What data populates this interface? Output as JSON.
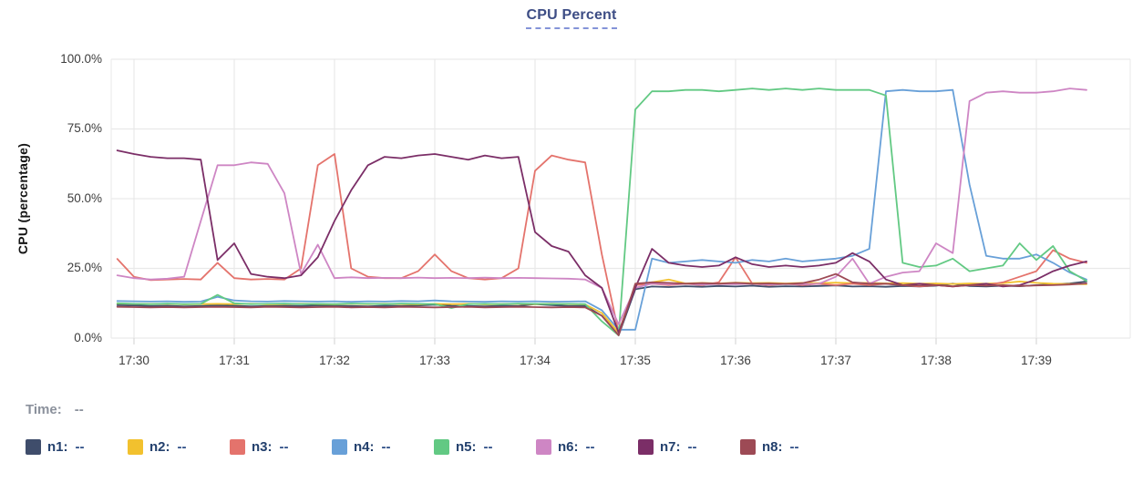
{
  "title": {
    "text": "CPU Percent",
    "color": "#3d4d85"
  },
  "y_axis": {
    "label": "CPU (percentage)",
    "ticks": [
      "100.0%",
      "75.0%",
      "50.0%",
      "25.0%",
      "0.0%"
    ]
  },
  "x_axis": {
    "ticks": [
      "17:30",
      "17:31",
      "17:32",
      "17:33",
      "17:34",
      "17:35",
      "17:36",
      "17:37",
      "17:38",
      "17:39"
    ]
  },
  "time_readout": {
    "label": "Time:",
    "value": "--"
  },
  "legend": [
    {
      "name": "n1",
      "label": "n1:",
      "value": "--",
      "color": "#3f4d6b"
    },
    {
      "name": "n2",
      "label": "n2:",
      "value": "--",
      "color": "#f2c12e"
    },
    {
      "name": "n3",
      "label": "n3:",
      "value": "--",
      "color": "#e4736c"
    },
    {
      "name": "n4",
      "label": "n4:",
      "value": "--",
      "color": "#68a0d8"
    },
    {
      "name": "n5",
      "label": "n5:",
      "value": "--",
      "color": "#62c983"
    },
    {
      "name": "n6",
      "label": "n6:",
      "value": "--",
      "color": "#ce86c4"
    },
    {
      "name": "n7",
      "label": "n7:",
      "value": "--",
      "color": "#7b2e67"
    },
    {
      "name": "n8",
      "label": "n8:",
      "value": "--",
      "color": "#9d4a55"
    }
  ],
  "chart_data": {
    "type": "line",
    "title": "CPU Percent",
    "xlabel": "",
    "ylabel": "CPU (percentage)",
    "ylim": [
      0,
      100
    ],
    "grid": true,
    "legend_position": "bottom",
    "y_tick_values": [
      0,
      25,
      50,
      75,
      100
    ],
    "x_tick_labels": [
      "17:30",
      "17:31",
      "17:32",
      "17:33",
      "17:34",
      "17:35",
      "17:36",
      "17:37",
      "17:38",
      "17:39"
    ],
    "times": [
      "17:29:50",
      "17:30:00",
      "17:30:10",
      "17:30:20",
      "17:30:30",
      "17:30:40",
      "17:30:50",
      "17:31:00",
      "17:31:10",
      "17:31:20",
      "17:31:30",
      "17:31:40",
      "17:31:50",
      "17:32:00",
      "17:32:10",
      "17:32:20",
      "17:32:30",
      "17:32:40",
      "17:32:50",
      "17:33:00",
      "17:33:10",
      "17:33:20",
      "17:33:30",
      "17:33:40",
      "17:33:50",
      "17:34:00",
      "17:34:10",
      "17:34:20",
      "17:34:30",
      "17:34:40",
      "17:34:50",
      "17:35:00",
      "17:35:10",
      "17:35:20",
      "17:35:30",
      "17:35:40",
      "17:35:50",
      "17:36:00",
      "17:36:10",
      "17:36:20",
      "17:36:30",
      "17:36:40",
      "17:36:50",
      "17:37:00",
      "17:37:10",
      "17:37:20",
      "17:37:30",
      "17:37:40",
      "17:37:50",
      "17:38:00",
      "17:38:10",
      "17:38:20",
      "17:38:30",
      "17:38:40",
      "17:38:50",
      "17:39:00",
      "17:39:10",
      "17:39:20",
      "17:39:30"
    ],
    "series": [
      {
        "name": "n1",
        "color": "#3f4d6b",
        "values": [
          11.8,
          11.7,
          11.5,
          11.6,
          11.4,
          11.5,
          11.7,
          11.6,
          11.4,
          11.5,
          11.6,
          11.5,
          11.7,
          11.6,
          11.5,
          11.4,
          11.6,
          11.5,
          11.7,
          12.0,
          11.6,
          11.5,
          11.4,
          11.6,
          11.5,
          12.2,
          11.8,
          11.5,
          11.6,
          8.0,
          1.0,
          17.5,
          18.5,
          18.3,
          18.6,
          18.4,
          18.7,
          18.5,
          18.8,
          18.4,
          18.6,
          18.5,
          18.7,
          18.9,
          18.5,
          18.6,
          18.4,
          18.7,
          18.5,
          18.8,
          19.5,
          18.7,
          18.5,
          18.8,
          18.6,
          19.0,
          19.3,
          19.6,
          20.3
        ]
      },
      {
        "name": "n2",
        "color": "#f2c12e",
        "values": [
          12.4,
          12.3,
          12.2,
          12.3,
          12.1,
          12.2,
          12.3,
          12.2,
          12.3,
          12.1,
          12.2,
          12.3,
          12.2,
          12.1,
          12.3,
          12.2,
          12.3,
          12.2,
          12.1,
          12.3,
          12.2,
          12.3,
          12.1,
          12.2,
          12.3,
          12.2,
          12.3,
          12.2,
          12.1,
          9.0,
          2.0,
          19.0,
          20.0,
          21.0,
          19.6,
          19.8,
          19.6,
          19.9,
          19.7,
          19.8,
          19.6,
          19.8,
          19.7,
          19.9,
          19.7,
          19.8,
          19.6,
          19.7,
          19.5,
          19.6,
          19.4,
          19.6,
          19.5,
          19.7,
          20.3,
          19.8,
          19.5,
          19.4,
          19.3
        ]
      },
      {
        "name": "n3",
        "color": "#e4736c",
        "values": [
          28.4,
          22.0,
          20.8,
          21.0,
          21.2,
          21.0,
          27.0,
          21.5,
          21.0,
          21.2,
          21.0,
          25.0,
          62.0,
          66.0,
          25.0,
          22.0,
          21.5,
          21.5,
          24.0,
          30.0,
          24.0,
          21.5,
          21.0,
          21.5,
          25.0,
          60.0,
          65.5,
          64.0,
          63.0,
          30.0,
          2.0,
          19.0,
          19.5,
          19.0,
          19.5,
          19.0,
          20.0,
          29.0,
          19.5,
          19.0,
          19.5,
          19.0,
          19.5,
          19.0,
          19.5,
          19.0,
          19.5,
          19.0,
          18.5,
          19.0,
          18.5,
          19.0,
          19.0,
          20.0,
          22.0,
          24.0,
          31.5,
          28.5,
          27.0
        ]
      },
      {
        "name": "n4",
        "color": "#68a0d8",
        "values": [
          13.3,
          13.2,
          13.1,
          13.2,
          13.0,
          13.1,
          14.8,
          13.5,
          13.2,
          13.1,
          13.3,
          13.2,
          13.1,
          13.2,
          13.0,
          13.2,
          13.1,
          13.3,
          13.2,
          13.5,
          13.2,
          13.1,
          13.0,
          13.2,
          13.1,
          13.2,
          13.0,
          13.1,
          13.2,
          10.0,
          3.0,
          3.0,
          28.5,
          27.0,
          27.5,
          28.0,
          27.5,
          27.0,
          28.0,
          27.5,
          28.5,
          27.5,
          28.0,
          28.5,
          29.5,
          32.0,
          88.5,
          89.0,
          88.5,
          88.5,
          89.0,
          55.0,
          29.5,
          28.5,
          28.5,
          30.0,
          27.0,
          23.5,
          21.0
        ]
      },
      {
        "name": "n5",
        "color": "#62c983",
        "values": [
          12.5,
          12.3,
          12.2,
          12.4,
          12.2,
          12.3,
          15.5,
          12.5,
          12.2,
          12.3,
          12.4,
          12.2,
          12.3,
          12.2,
          12.4,
          12.3,
          12.2,
          12.4,
          12.3,
          12.2,
          10.8,
          12.2,
          12.3,
          12.2,
          12.4,
          12.3,
          12.2,
          12.3,
          12.2,
          6.0,
          1.0,
          82.0,
          88.5,
          88.5,
          89.0,
          89.0,
          88.5,
          89.0,
          89.5,
          89.0,
          89.5,
          89.0,
          89.5,
          89.0,
          89.0,
          89.0,
          87.0,
          27.0,
          25.5,
          26.0,
          28.5,
          24.0,
          25.0,
          26.0,
          34.0,
          28.0,
          33.0,
          24.0,
          20.5
        ]
      },
      {
        "name": "n6",
        "color": "#ce86c4",
        "values": [
          22.5,
          21.5,
          21.0,
          21.3,
          22.0,
          42.0,
          62.0,
          62.0,
          63.0,
          62.5,
          52.0,
          23.0,
          33.5,
          21.5,
          21.8,
          21.5,
          21.6,
          21.5,
          21.7,
          21.5,
          21.6,
          21.5,
          21.7,
          21.5,
          21.6,
          21.5,
          21.4,
          21.3,
          21.0,
          18.0,
          5.0,
          18.0,
          19.5,
          19.3,
          19.5,
          19.2,
          19.4,
          19.3,
          19.5,
          19.2,
          19.4,
          19.3,
          19.5,
          22.0,
          28.5,
          19.5,
          22.0,
          23.5,
          24.0,
          34.0,
          30.5,
          85.0,
          88.0,
          88.5,
          88.0,
          88.0,
          88.5,
          89.5,
          89.0
        ]
      },
      {
        "name": "n7",
        "color": "#7b2e67",
        "values": [
          67.3,
          66.0,
          65.0,
          64.5,
          64.5,
          64.0,
          28.0,
          34.0,
          23.0,
          22.0,
          21.5,
          22.5,
          29.0,
          42.0,
          53.0,
          62.0,
          65.0,
          64.5,
          65.5,
          66.0,
          65.0,
          64.0,
          65.5,
          64.5,
          65.0,
          38.0,
          33.0,
          31.0,
          22.5,
          18.0,
          2.0,
          18.0,
          32.0,
          27.0,
          26.0,
          25.5,
          26.0,
          29.0,
          26.5,
          25.5,
          26.0,
          25.5,
          26.0,
          27.0,
          30.5,
          27.5,
          21.0,
          19.0,
          19.5,
          19.0,
          18.5,
          19.0,
          19.5,
          18.5,
          19.0,
          21.0,
          24.0,
          26.0,
          27.5
        ]
      },
      {
        "name": "n8",
        "color": "#9d4a55",
        "values": [
          11.2,
          11.1,
          11.0,
          11.1,
          11.0,
          11.1,
          11.2,
          11.1,
          11.0,
          11.2,
          11.1,
          11.0,
          11.1,
          11.2,
          11.0,
          11.1,
          11.0,
          11.2,
          11.1,
          11.0,
          11.1,
          11.2,
          11.0,
          11.1,
          11.2,
          11.1,
          11.0,
          11.1,
          11.0,
          8.0,
          1.0,
          19.5,
          20.0,
          19.8,
          19.5,
          19.7,
          19.5,
          19.8,
          19.5,
          19.6,
          19.4,
          19.7,
          21.0,
          23.0,
          20.0,
          19.5,
          19.5,
          19.0,
          18.8,
          19.0,
          18.6,
          19.0,
          18.8,
          19.0,
          18.7,
          18.9,
          19.0,
          19.2,
          19.6
        ]
      }
    ]
  }
}
